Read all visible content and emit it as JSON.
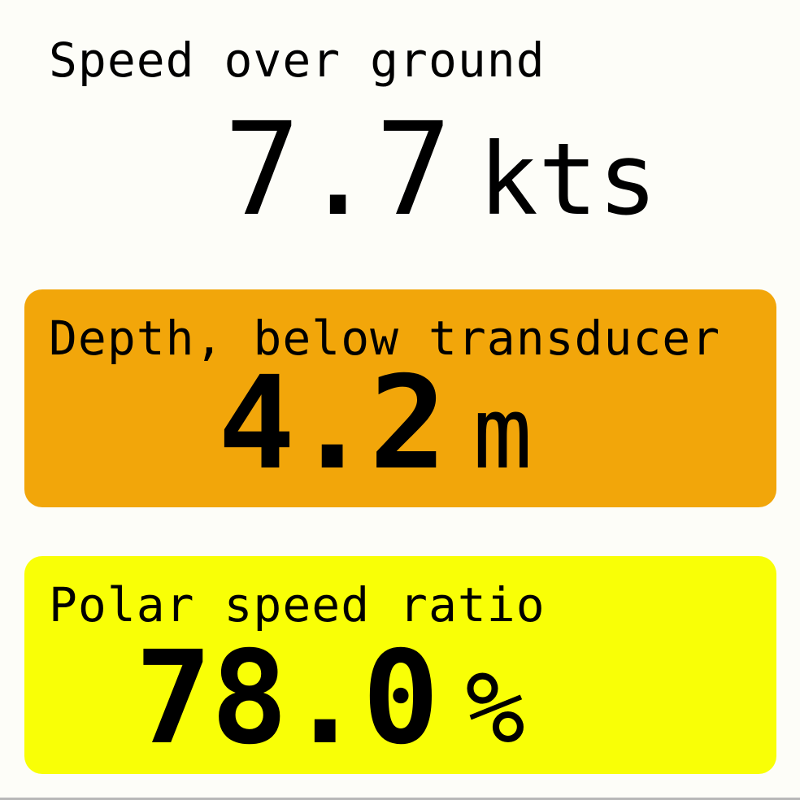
{
  "colors": {
    "background": "#fdfdf8",
    "depth_alert": "#f2a60a",
    "polar_highlight": "#f9ff06",
    "text": "#000000"
  },
  "panels": [
    {
      "label": "Speed over ground",
      "value": "7.7",
      "unit": "kts",
      "highlight": "none"
    },
    {
      "label": "Depth, below transducer",
      "value": "4.2",
      "unit": "m",
      "highlight": "orange"
    },
    {
      "label": "Polar speed ratio",
      "value": "78.0",
      "unit": "%",
      "highlight": "yellow"
    }
  ]
}
